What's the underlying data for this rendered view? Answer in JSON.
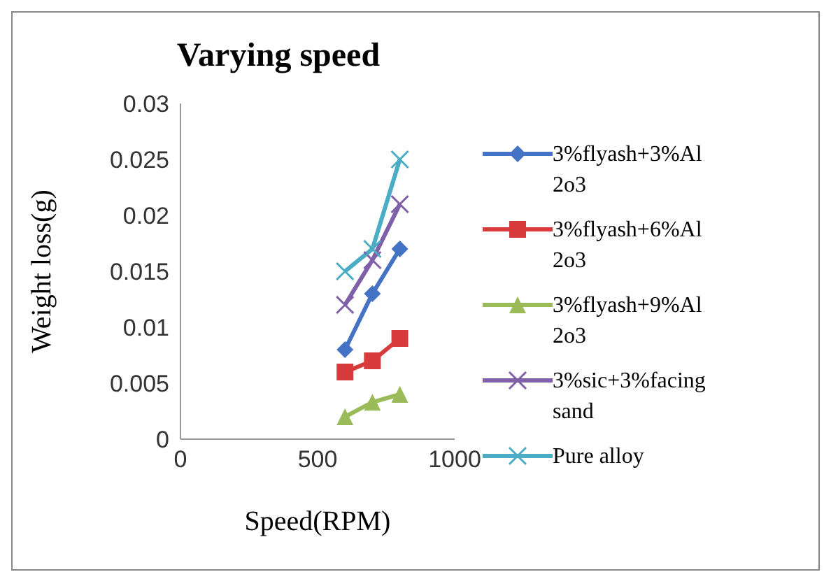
{
  "chart_data": {
    "type": "line",
    "title": "Varying speed",
    "xlabel": "Speed(RPM)",
    "ylabel": "Weight loss(g)",
    "x": [
      600,
      700,
      800
    ],
    "series": [
      {
        "name": "3%flyash+3%Al2o3",
        "color": "#4472c4",
        "marker": "diamond",
        "values": [
          0.008,
          0.013,
          0.017
        ]
      },
      {
        "name": "3%flyash+6%Al2o3",
        "color": "#d83b3b",
        "marker": "square",
        "values": [
          0.006,
          0.007,
          0.009
        ]
      },
      {
        "name": "3%flyash+9%Al2o3",
        "color": "#9bbb59",
        "marker": "triangle",
        "values": [
          0.002,
          0.0033,
          0.004
        ]
      },
      {
        "name": "3%sic+3%facing sand",
        "color": "#7e5fa8",
        "marker": "cross",
        "values": [
          0.012,
          0.016,
          0.021
        ]
      },
      {
        "name": "Pure alloy",
        "color": "#4bacc6",
        "marker": "cross",
        "values": [
          0.015,
          0.017,
          0.025
        ]
      }
    ],
    "xlim": [
      0,
      1000
    ],
    "xticks": [
      0,
      500,
      1000
    ],
    "ylim": [
      0,
      0.03
    ],
    "yticks": [
      0,
      0.005,
      0.01,
      0.015,
      0.02,
      0.025,
      0.03
    ],
    "grid": false,
    "legend": "right"
  }
}
